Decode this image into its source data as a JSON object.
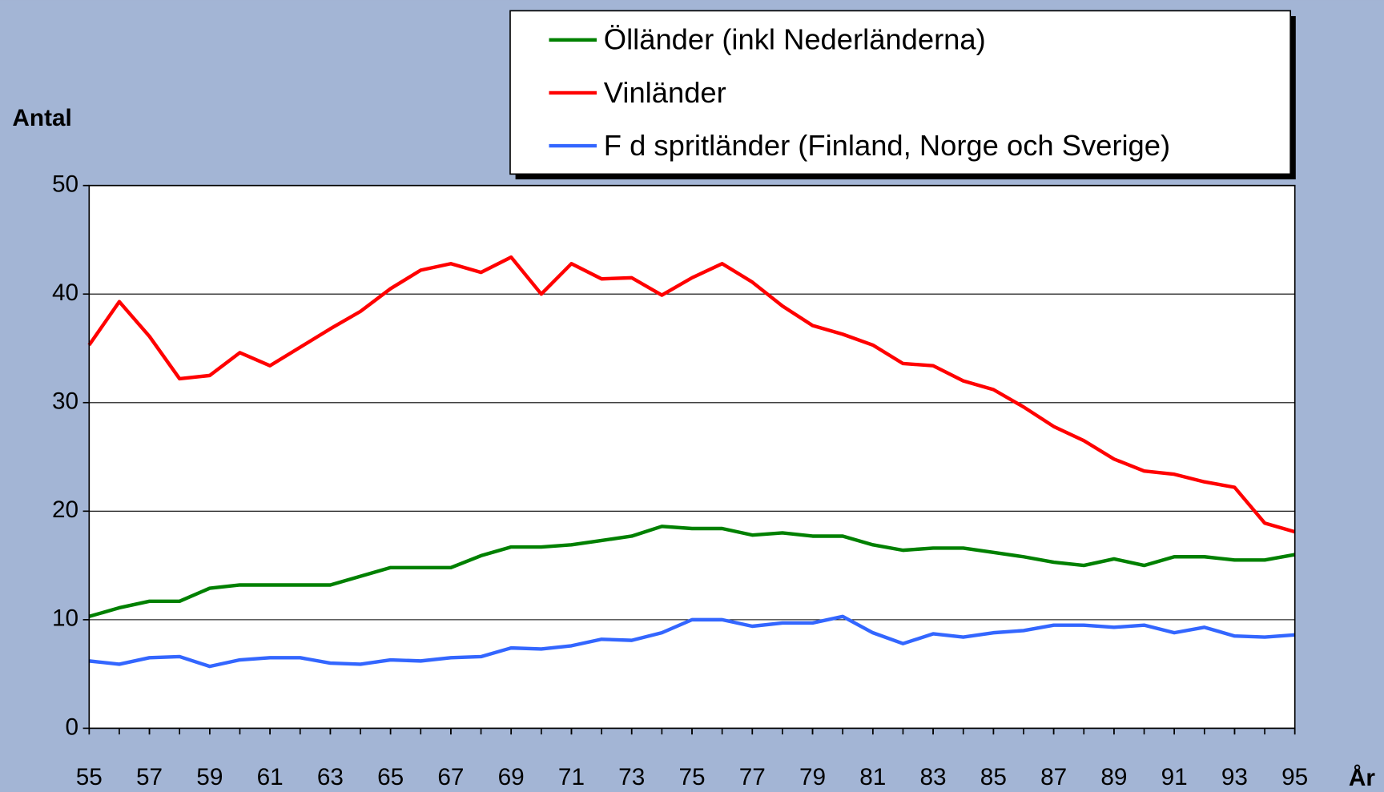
{
  "chart_data": {
    "type": "line",
    "y_label": "Antal",
    "x_label": "År",
    "x": [
      55,
      56,
      57,
      58,
      59,
      60,
      61,
      62,
      63,
      64,
      65,
      66,
      67,
      68,
      69,
      70,
      71,
      72,
      73,
      74,
      75,
      76,
      77,
      78,
      79,
      80,
      81,
      82,
      83,
      84,
      85,
      86,
      87,
      88,
      89,
      90,
      91,
      92,
      93,
      94,
      95
    ],
    "series": [
      {
        "name": "Ölländer (inkl Nederländerna)",
        "color": "#008000",
        "values": [
          10.3,
          11.1,
          11.7,
          11.7,
          12.9,
          13.2,
          13.2,
          13.2,
          13.2,
          14.0,
          14.8,
          14.8,
          14.8,
          15.9,
          16.7,
          16.7,
          16.9,
          17.3,
          17.7,
          18.6,
          18.4,
          18.4,
          17.8,
          18.0,
          17.7,
          17.7,
          16.9,
          16.4,
          16.6,
          16.6,
          16.2,
          15.8,
          15.3,
          15.0,
          15.6,
          15.0,
          15.8,
          15.8,
          15.5,
          15.5,
          16.0
        ]
      },
      {
        "name": "Vinländer",
        "color": "#ff0000",
        "values": [
          35.3,
          39.3,
          36.1,
          32.2,
          32.5,
          34.6,
          33.4,
          35.1,
          36.8,
          38.4,
          40.5,
          42.2,
          42.8,
          42.0,
          43.4,
          40.0,
          42.8,
          41.4,
          41.5,
          39.9,
          41.5,
          42.8,
          41.1,
          38.9,
          37.1,
          36.3,
          35.3,
          33.6,
          33.4,
          32.0,
          31.2,
          29.6,
          27.8,
          26.5,
          24.8,
          23.7,
          23.4,
          22.7,
          22.2,
          18.9,
          18.1
        ]
      },
      {
        "name": "F d spritländer (Finland, Norge och Sverige)",
        "color": "#3366ff",
        "values": [
          6.2,
          5.9,
          6.5,
          6.6,
          5.7,
          6.3,
          6.5,
          6.5,
          6.0,
          5.9,
          6.3,
          6.2,
          6.5,
          6.6,
          7.4,
          7.3,
          7.6,
          8.2,
          8.1,
          8.8,
          10.0,
          10.0,
          9.4,
          9.7,
          9.7,
          10.3,
          8.8,
          7.8,
          8.7,
          8.4,
          8.8,
          9.0,
          9.5,
          9.5,
          9.3,
          9.5,
          8.8,
          9.3,
          8.5,
          8.4,
          8.6
        ]
      }
    ],
    "xlim": [
      55,
      95
    ],
    "xticks": [
      55,
      57,
      59,
      61,
      63,
      65,
      67,
      69,
      71,
      73,
      75,
      77,
      79,
      81,
      83,
      85,
      87,
      89,
      91,
      93,
      95
    ],
    "ylim": [
      0,
      50
    ],
    "yticks": [
      0,
      10,
      20,
      30,
      40,
      50
    ],
    "grid": true
  }
}
